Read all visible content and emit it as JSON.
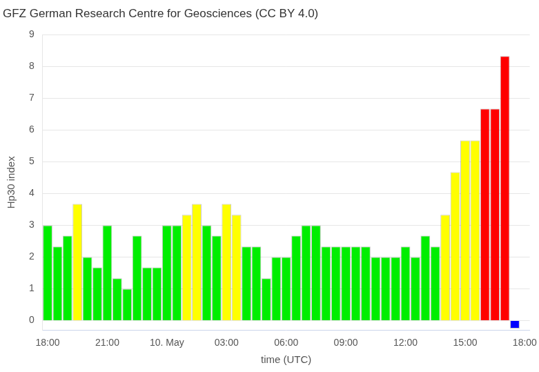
{
  "chart_data": {
    "type": "bar",
    "title": "GFZ German Research Centre for Geosciences (CC BY 4.0)",
    "x_label": "time (UTC)",
    "y_label": "Hp30 index",
    "categories": [
      "18:00",
      null,
      null,
      null,
      null,
      null,
      "21:00",
      null,
      null,
      null,
      null,
      null,
      "10. May",
      null,
      null,
      null,
      null,
      null,
      "03:00",
      null,
      null,
      null,
      null,
      null,
      "06:00",
      null,
      null,
      null,
      null,
      null,
      "09:00",
      null,
      null,
      null,
      null,
      null,
      "12:00",
      null,
      null,
      null,
      null,
      null,
      "15:00",
      null,
      null,
      null,
      null,
      null,
      "18:00"
    ],
    "values": [
      3.0,
      2.33,
      2.67,
      3.67,
      2.0,
      1.67,
      3.0,
      1.33,
      1.0,
      2.67,
      1.67,
      1.67,
      3.0,
      3.0,
      3.33,
      3.67,
      3.0,
      2.67,
      3.67,
      3.33,
      2.33,
      2.33,
      1.33,
      2.0,
      2.0,
      2.67,
      3.0,
      3.0,
      2.33,
      2.33,
      2.33,
      2.33,
      2.33,
      2.0,
      2.0,
      2.0,
      2.33,
      2.0,
      2.67,
      2.33,
      3.33,
      4.67,
      5.67,
      5.67,
      6.67,
      6.67,
      8.33,
      -0.25,
      null
    ],
    "colors": [
      "#00ee00",
      "#00ee00",
      "#00ee00",
      "#ffff00",
      "#00ee00",
      "#00ee00",
      "#00ee00",
      "#00ee00",
      "#00ee00",
      "#00ee00",
      "#00ee00",
      "#00ee00",
      "#00ee00",
      "#00ee00",
      "#ffff00",
      "#ffff00",
      "#00ee00",
      "#00ee00",
      "#ffff00",
      "#ffff00",
      "#00ee00",
      "#00ee00",
      "#00ee00",
      "#00ee00",
      "#00ee00",
      "#00ee00",
      "#00ee00",
      "#00ee00",
      "#00ee00",
      "#00ee00",
      "#00ee00",
      "#00ee00",
      "#00ee00",
      "#00ee00",
      "#00ee00",
      "#00ee00",
      "#00ee00",
      "#00ee00",
      "#00ee00",
      "#00ee00",
      "#ffff00",
      "#ffff00",
      "#ffff00",
      "#ffff00",
      "#ff0000",
      "#ff0000",
      "#ff0000",
      "#0000ff",
      null
    ],
    "ylim": [
      -0.3,
      9
    ],
    "yticks": [
      0,
      1,
      2,
      3,
      4,
      5,
      6,
      7,
      8,
      9
    ],
    "grid": true
  }
}
